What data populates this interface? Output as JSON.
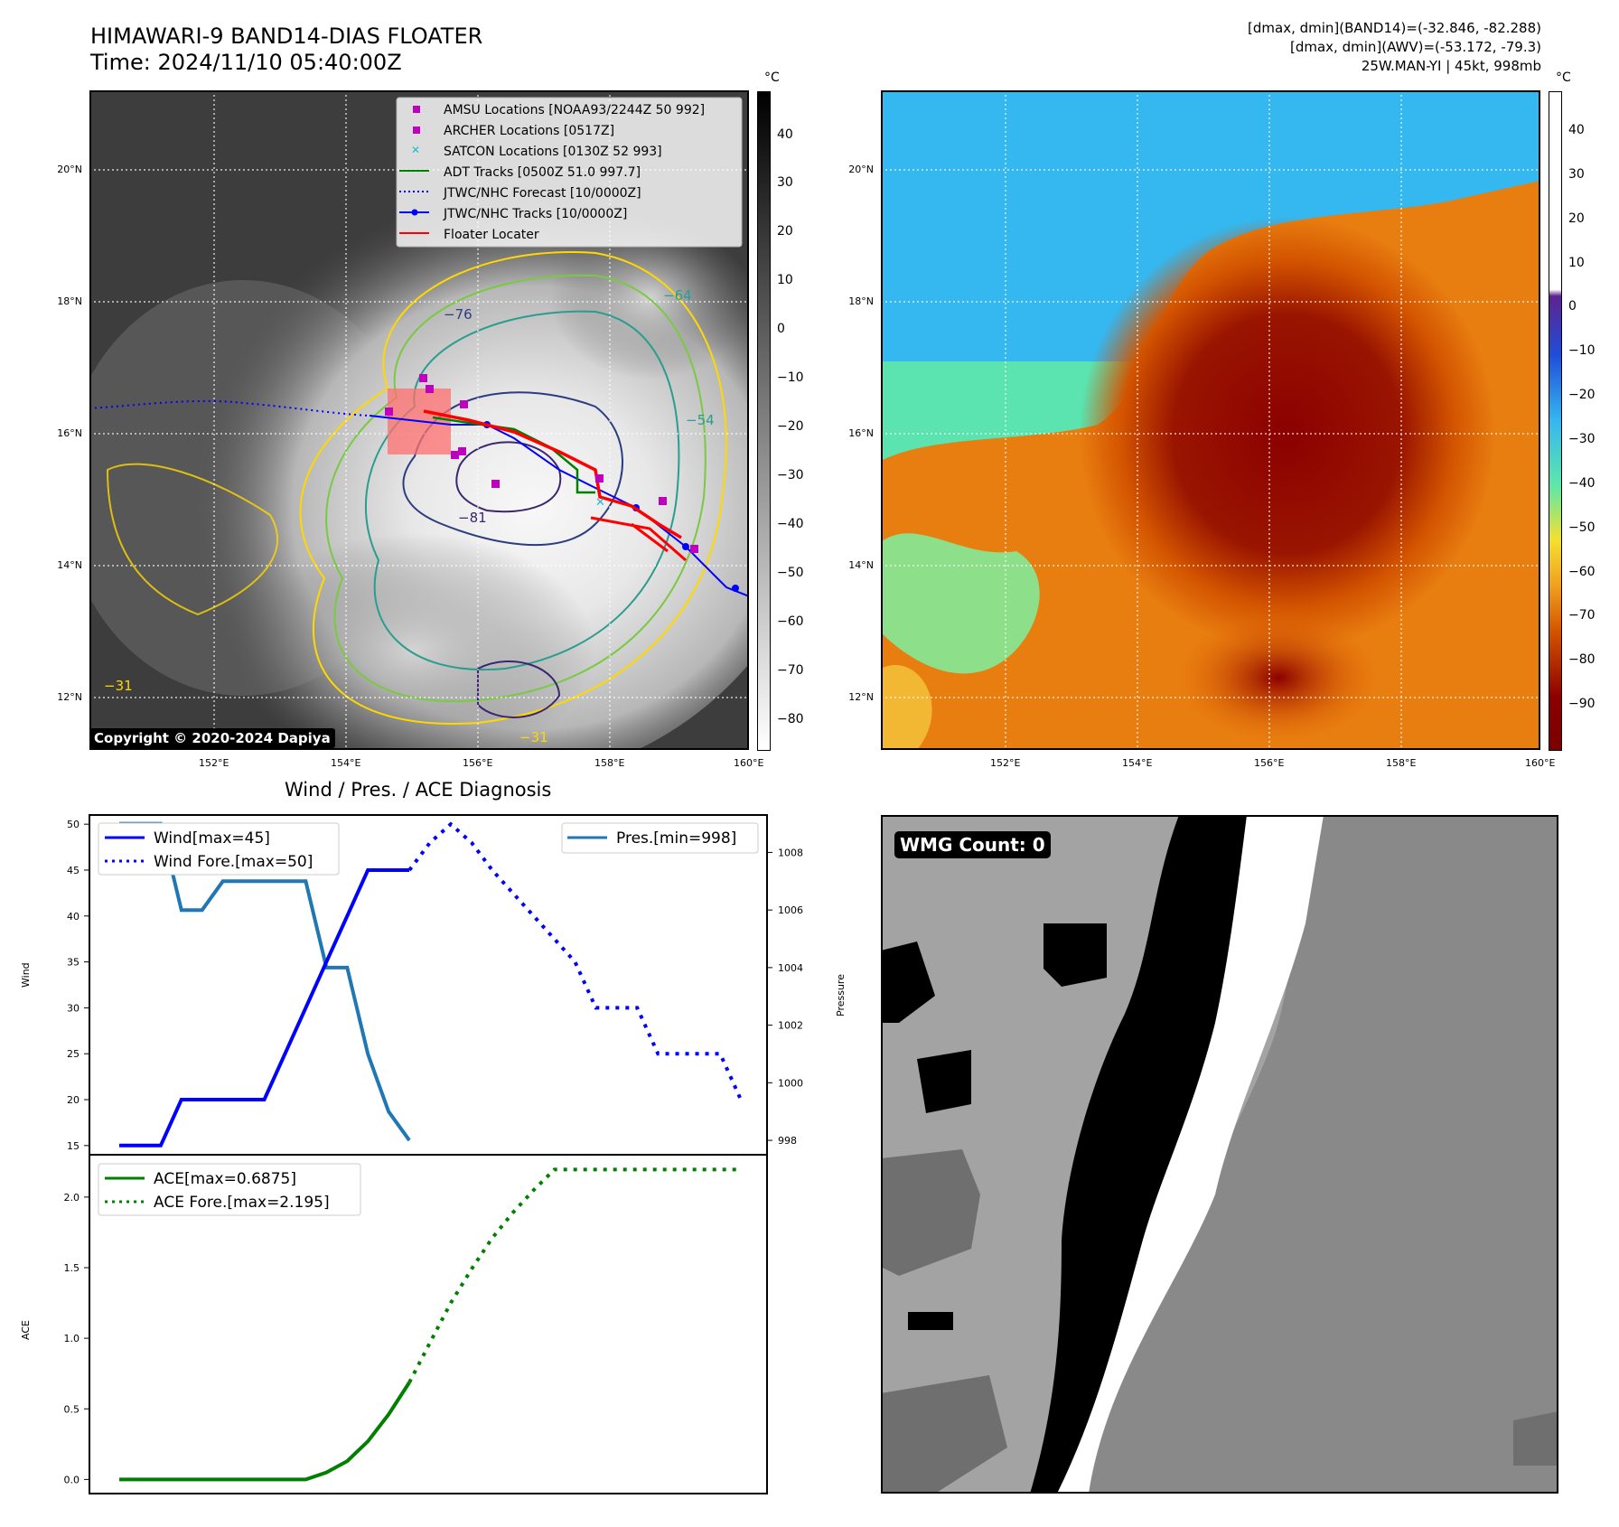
{
  "header": {
    "title_line1": "HIMAWARI-9 BAND14-DIAS FLOATER",
    "title_line2": "Time: 2024/11/10 05:40:00Z",
    "info_line1": "[dmax, dmin](BAND14)=(-32.846, -82.288)",
    "info_line2": "[dmax, dmin](AWV)=(-53.172, -79.3)",
    "info_line3": "25W.MAN-YI | 45kt, 998mb"
  },
  "map_axes": {
    "lon_labels": [
      "152°E",
      "154°E",
      "156°E",
      "158°E",
      "160°E"
    ],
    "lat_labels": [
      "20°N",
      "18°N",
      "16°N",
      "14°N",
      "12°N"
    ]
  },
  "ir_panel": {
    "colorbar_unit": "°C",
    "colorbar_ticks": [
      "40",
      "30",
      "20",
      "10",
      "0",
      "−10",
      "−20",
      "−30",
      "−40",
      "−50",
      "−60",
      "−70",
      "−80"
    ],
    "contour_labels": [
      "−76",
      "−64",
      "−81",
      "−54",
      "−31",
      "−31"
    ],
    "copyright": "Copyright © 2020-2024 Dapiya",
    "legend": [
      {
        "label": "AMSU Locations [NOAA93/2244Z 50 992]",
        "color": "#bf00bf",
        "marker": "square"
      },
      {
        "label": "ARCHER Locations [0517Z]",
        "color": "#bf00bf",
        "marker": "square"
      },
      {
        "label": "SATCON Locations [0130Z 52 993]",
        "color": "#17becf",
        "marker": "x"
      },
      {
        "label": "ADT Tracks [0500Z 51.0 997.7]",
        "color": "#008000",
        "marker": "line"
      },
      {
        "label": "JTWC/NHC Forecast [10/0000Z]",
        "color": "#0000ff",
        "marker": "dotted"
      },
      {
        "label": "JTWC/NHC Tracks [10/0000Z]",
        "color": "#0000ff",
        "marker": "line-dot"
      },
      {
        "label": "Floater Locater",
        "color": "#ff0000",
        "marker": "line"
      }
    ]
  },
  "awv_panel": {
    "colorbar_unit": "°C",
    "colorbar_ticks": [
      "40",
      "30",
      "20",
      "10",
      "0",
      "−10",
      "−20",
      "−30",
      "−40",
      "−50",
      "−60",
      "−70",
      "−80",
      "−90"
    ]
  },
  "wmg_panel": {
    "label": "WMG Count: 0"
  },
  "chart_data": [
    {
      "type": "line",
      "title": "Wind / Pres. / ACE Diagnosis",
      "ylabel": "Wind",
      "y2label": "Pressure",
      "ylim": [
        14,
        51
      ],
      "y2lim": [
        997.5,
        1009.3
      ],
      "yticks": [
        15,
        20,
        25,
        30,
        35,
        40,
        45,
        50
      ],
      "y2ticks": [
        998,
        1000,
        1002,
        1004,
        1006,
        1008
      ],
      "series": [
        {
          "name": "Wind[max=45]",
          "color": "#0000ff",
          "style": "solid",
          "axis": "left",
          "x": [
            0,
            2,
            3,
            4,
            5,
            6,
            7,
            8,
            9,
            10,
            11,
            12,
            13,
            14
          ],
          "values": [
            15,
            15,
            20,
            20,
            20,
            20,
            20,
            25,
            30,
            35,
            40,
            45,
            45,
            45
          ]
        },
        {
          "name": "Wind Fore.[max=50]",
          "color": "#0000ff",
          "style": "dotted",
          "axis": "left",
          "x": [
            14,
            15,
            16,
            17,
            18,
            19,
            20,
            21,
            22,
            23,
            24,
            25,
            26,
            27,
            28,
            29,
            30
          ],
          "values": [
            45,
            48,
            50,
            48,
            45,
            42.5,
            40,
            37.5,
            35,
            30,
            30,
            30,
            25,
            25,
            25,
            25,
            20
          ]
        },
        {
          "name": "Pres.[min=998]",
          "color": "#1f77b4",
          "style": "solid",
          "axis": "right",
          "x": [
            0,
            2,
            3,
            4,
            5,
            6,
            7,
            8,
            9,
            10,
            11,
            12,
            13,
            14
          ],
          "values": [
            1009,
            1009,
            1006,
            1006,
            1007,
            1007,
            1007,
            1007,
            1007,
            1004,
            1004,
            1001,
            999,
            998
          ]
        }
      ]
    },
    {
      "type": "line",
      "ylabel": "ACE",
      "ylim": [
        -0.1,
        2.3
      ],
      "yticks": [
        0.0,
        0.5,
        1.0,
        1.5,
        2.0
      ],
      "series": [
        {
          "name": "ACE[max=0.6875]",
          "color": "#008000",
          "style": "solid",
          "x": [
            0,
            1,
            2,
            3,
            4,
            5,
            6,
            7,
            8,
            9,
            10,
            11,
            12,
            13,
            14
          ],
          "values": [
            0,
            0,
            0,
            0,
            0,
            0,
            0,
            0,
            0,
            0,
            0.05,
            0.13,
            0.27,
            0.46,
            0.6875
          ]
        },
        {
          "name": "ACE Fore.[max=2.195]",
          "color": "#008000",
          "style": "dotted",
          "x": [
            14,
            15,
            16,
            17,
            18,
            19,
            20,
            21,
            22,
            23,
            24,
            25,
            26,
            27,
            28,
            29,
            30
          ],
          "values": [
            0.6875,
            0.97,
            1.25,
            1.49,
            1.71,
            1.89,
            2.05,
            2.195,
            2.195,
            2.195,
            2.195,
            2.195,
            2.195,
            2.195,
            2.195,
            2.195,
            2.195
          ]
        }
      ]
    }
  ]
}
